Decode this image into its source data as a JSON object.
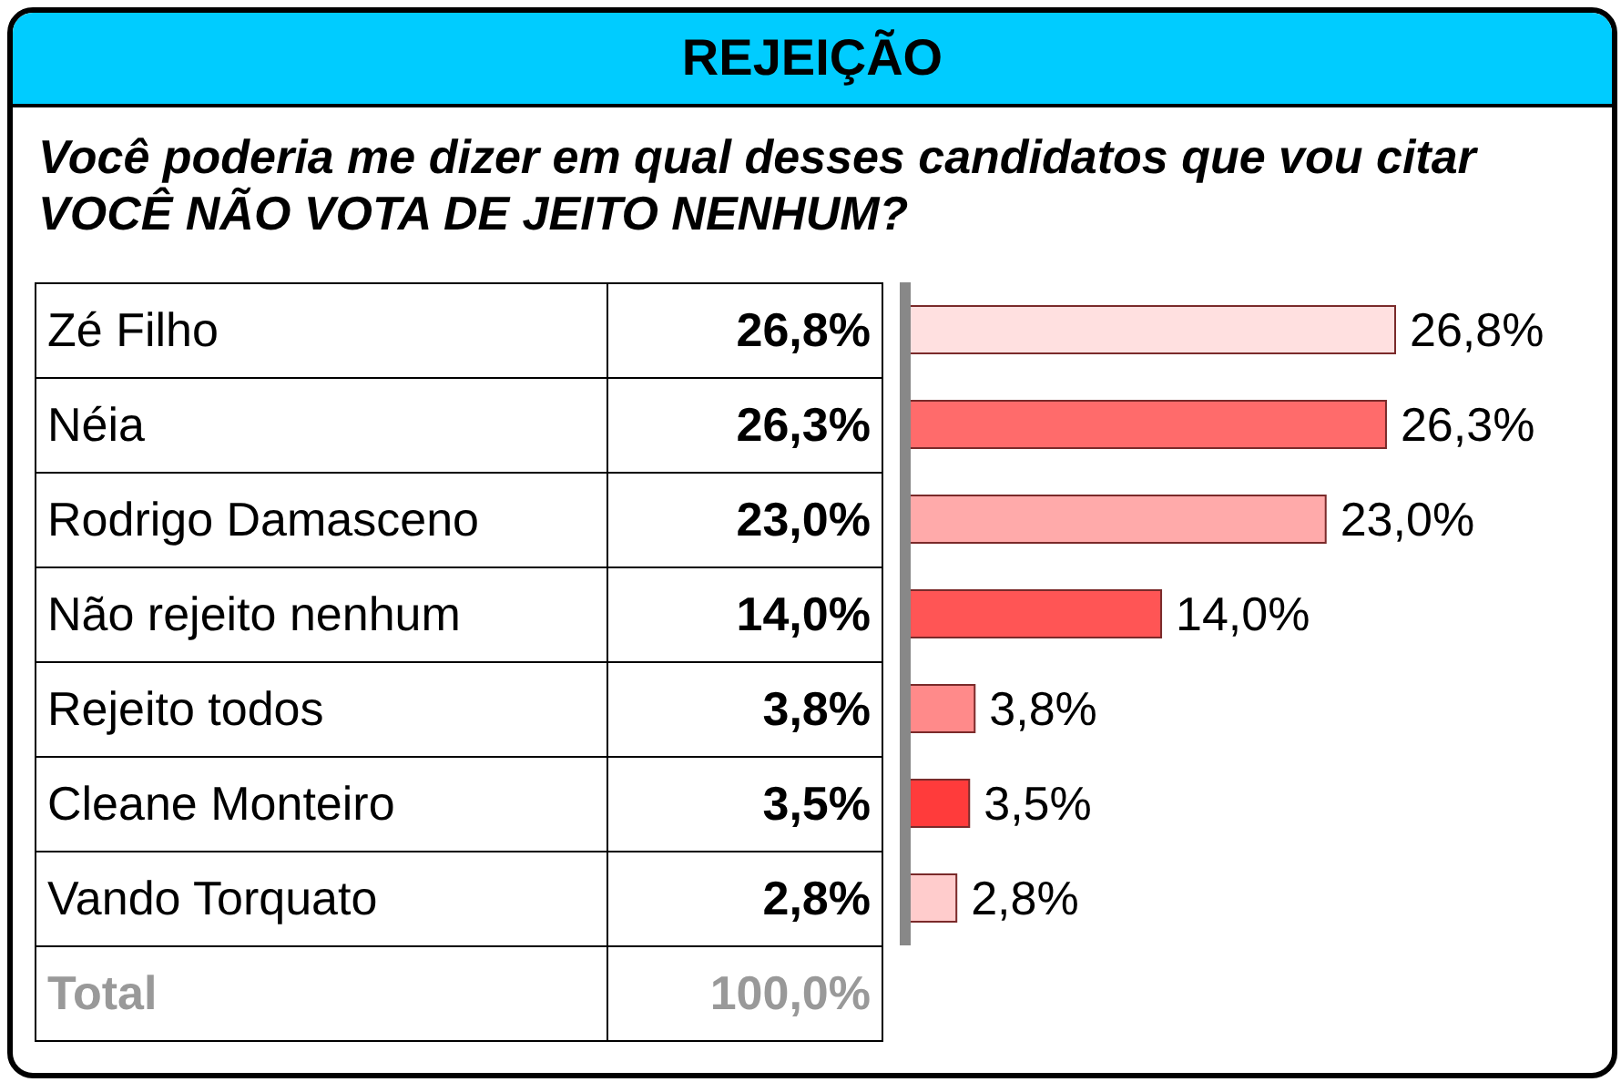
{
  "chart_data": {
    "type": "bar",
    "orientation": "horizontal",
    "title": "REJEIÇÃO",
    "subtitle": "Você poderia me dizer em qual desses candidatos que vou citar VOCÊ NÃO VOTA DE JEITO NENHUM?",
    "categories": [
      "Zé Filho",
      "Néia",
      "Rodrigo Damasceno",
      "Não rejeito nenhum",
      "Rejeito todos",
      "Cleane Monteiro",
      "Vando Torquato"
    ],
    "values": [
      26.8,
      26.3,
      23.0,
      14.0,
      3.8,
      3.5,
      2.8
    ],
    "value_labels": [
      "26,8%",
      "26,3%",
      "23,0%",
      "14,0%",
      "3,8%",
      "3,5%",
      "2,8%"
    ],
    "colors": [
      "#ffe0e0",
      "#ff6b6b",
      "#ffaaaa",
      "#ff5555",
      "#ff8a8a",
      "#ff3b3b",
      "#ffcccc"
    ],
    "annotations": [
      "Total",
      "100,0%"
    ]
  }
}
